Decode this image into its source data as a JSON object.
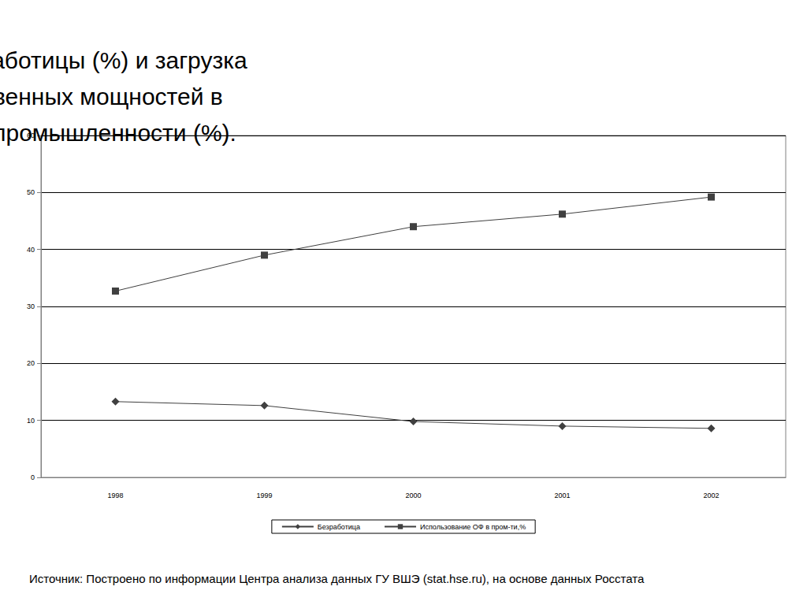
{
  "chart_data": {
    "type": "line",
    "title": "Уровень безработицы (%) и загрузка производственных мощностей в российской промышленности (%).",
    "annotations": [
      "Источник: Построено по информации Центра анализа данных ГУ ВШЭ (stat.hse.ru), на основе данных Росстата"
    ],
    "categories": [
      "1998",
      "1999",
      "2000",
      "2001",
      "2002"
    ],
    "series": [
      {
        "name": "Безработица",
        "color": "#404040",
        "marker": "diamond",
        "values": [
          13.3,
          12.6,
          9.8,
          9.0,
          8.6
        ]
      },
      {
        "name": "Использование ОФ в пром-ти,%",
        "color": "#404040",
        "marker": "square",
        "values": [
          32.7,
          39.0,
          44.0,
          46.2,
          49.2
        ]
      }
    ],
    "ylim": [
      0,
      60
    ],
    "yticks": [
      0,
      10,
      20,
      30,
      40,
      50,
      60
    ],
    "grid": true,
    "legend": "bottom"
  }
}
